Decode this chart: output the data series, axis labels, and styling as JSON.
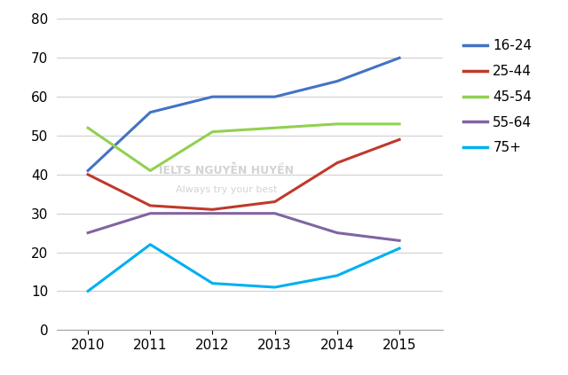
{
  "years": [
    2010,
    2011,
    2012,
    2013,
    2014,
    2015
  ],
  "series": {
    "16-24": {
      "values": [
        41,
        56,
        60,
        60,
        64,
        70
      ],
      "color": "#4472C4"
    },
    "25-44": {
      "values": [
        40,
        32,
        31,
        33,
        43,
        49
      ],
      "color": "#C0392B"
    },
    "45-54": {
      "values": [
        52,
        41,
        51,
        52,
        53,
        53
      ],
      "color": "#92D050"
    },
    "55-64": {
      "values": [
        25,
        30,
        30,
        30,
        25,
        23
      ],
      "color": "#8064A2"
    },
    "75+": {
      "values": [
        10,
        22,
        12,
        11,
        14,
        21
      ],
      "color": "#00B0F0"
    }
  },
  "ylim": [
    0,
    82
  ],
  "yticks": [
    0,
    10,
    20,
    30,
    40,
    50,
    60,
    70,
    80
  ],
  "legend_order": [
    "16-24",
    "25-44",
    "45-54",
    "55-64",
    "75+"
  ],
  "line_width": 2.2,
  "background_color": "#FFFFFF",
  "grid_color": "#D0D0D0",
  "tick_fontsize": 11,
  "legend_fontsize": 11
}
